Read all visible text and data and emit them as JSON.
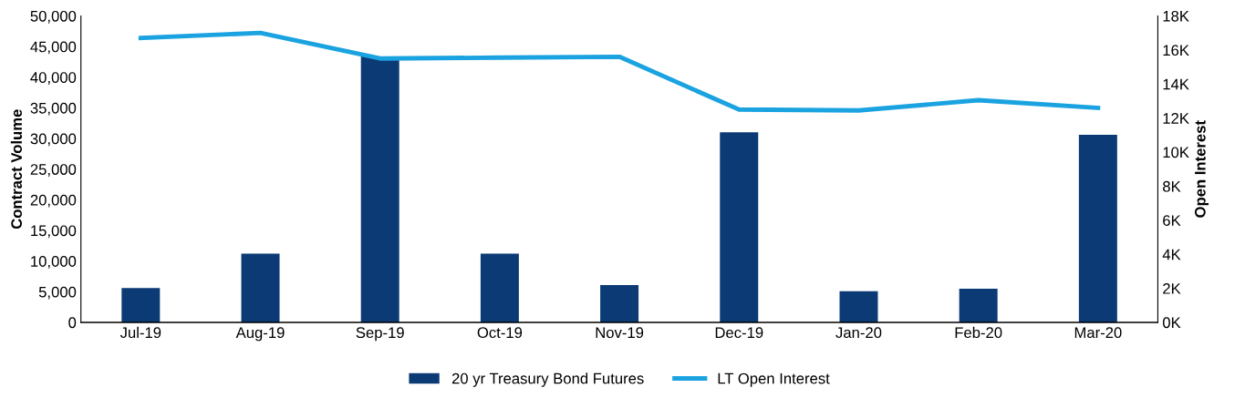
{
  "chart_data": {
    "type": "bar",
    "ylabel": "Contract Volume",
    "y2label": "Open Interest",
    "categories": [
      "Jul-19",
      "Aug-19",
      "Sep-19",
      "Oct-19",
      "Nov-19",
      "Dec-19",
      "Jan-20",
      "Feb-20",
      "Mar-20"
    ],
    "series": [
      {
        "name": "20 yr Treasury Bond Futures",
        "color": "#0b3a75",
        "values": [
          5600,
          11200,
          43400,
          11200,
          6100,
          31000,
          5100,
          5500,
          30600
        ]
      },
      {
        "name": "LT Open Interest",
        "type": "line",
        "axis": "y2",
        "color": "#1aa3e0",
        "values": [
          16700,
          17000,
          15500,
          15550,
          15600,
          12500,
          12450,
          13050,
          12600
        ]
      }
    ],
    "ylim": [
      0,
      50000
    ],
    "yticks": [
      {
        "value": 0,
        "label": "0"
      },
      {
        "value": 5000,
        "label": "5,000"
      },
      {
        "value": 10000,
        "label": "10,000"
      },
      {
        "value": 15000,
        "label": "15,000"
      },
      {
        "value": 20000,
        "label": "20,000"
      },
      {
        "value": 25000,
        "label": "25,000"
      },
      {
        "value": 30000,
        "label": "30,000"
      },
      {
        "value": 35000,
        "label": "35,000"
      },
      {
        "value": 40000,
        "label": "40,000"
      },
      {
        "value": 45000,
        "label": "45,000"
      },
      {
        "value": 50000,
        "label": "50,000"
      }
    ],
    "y2lim": [
      0,
      18000
    ],
    "y2ticks": [
      {
        "value": 0,
        "label": "0K"
      },
      {
        "value": 2000,
        "label": "2K"
      },
      {
        "value": 4000,
        "label": "4K"
      },
      {
        "value": 6000,
        "label": "6K"
      },
      {
        "value": 8000,
        "label": "8K"
      },
      {
        "value": 10000,
        "label": "10K"
      },
      {
        "value": 12000,
        "label": "12K"
      },
      {
        "value": 14000,
        "label": "14K"
      },
      {
        "value": 16000,
        "label": "16K"
      },
      {
        "value": 18000,
        "label": "18K"
      }
    ],
    "legend": "bottom",
    "grid": false
  }
}
